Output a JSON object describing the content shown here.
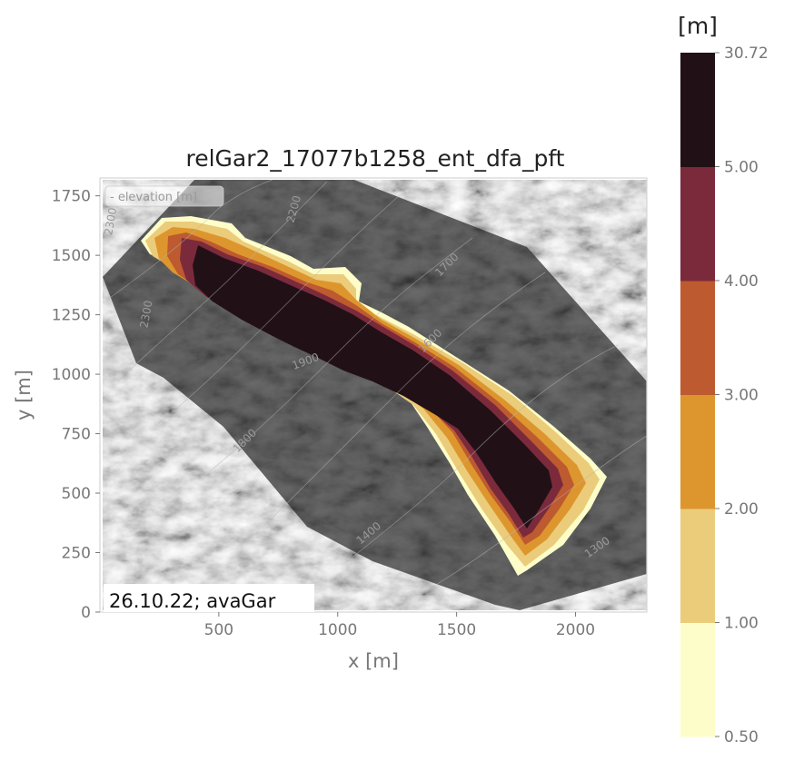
{
  "chart_data": {
    "type": "heatmap",
    "title": "relGar2_17077b1258_ent_dfa_pft",
    "xlabel": "x [m]",
    "ylabel": "y [m]",
    "xlim": [
      0,
      2300
    ],
    "ylim": [
      0,
      1825
    ],
    "x_ticks": [
      500,
      1000,
      1500,
      2000
    ],
    "y_ticks": [
      0,
      250,
      500,
      750,
      1000,
      1250,
      1500,
      1750
    ],
    "x_tick_labels": [
      "500",
      "1000",
      "1500",
      "2000"
    ],
    "y_tick_labels": [
      "0",
      "250",
      "500",
      "750",
      "1000",
      "1250",
      "1500",
      "1750"
    ],
    "legend_entry": "- elevation [m]",
    "annotation": "26.10.22; avaGar",
    "grid": false,
    "colorbar": {
      "unit": "[m]",
      "boundaries": [
        0.5,
        1.0,
        2.0,
        3.0,
        4.0,
        5.0,
        30.72
      ],
      "labels": [
        "0.50",
        "1.00",
        "2.00",
        "3.00",
        "4.00",
        "5.00",
        "30.72"
      ],
      "colors": [
        "#fdfdca",
        "#ebcc7a",
        "#dd962e",
        "#bd5a2f",
        "#7b2a3c",
        "#211117"
      ]
    },
    "contour_labels": [
      {
        "text": "2200",
        "x": 830,
        "y": 1690,
        "rot": -75
      },
      {
        "text": "2300",
        "x": 60,
        "y": 1640,
        "rot": -80
      },
      {
        "text": "2300",
        "x": 210,
        "y": 1250,
        "rot": -80
      },
      {
        "text": "1700",
        "x": 1470,
        "y": 1450,
        "rot": -45
      },
      {
        "text": "1900",
        "x": 870,
        "y": 1040,
        "rot": -20
      },
      {
        "text": "1600",
        "x": 1400,
        "y": 1130,
        "rot": -45
      },
      {
        "text": "1800",
        "x": 620,
        "y": 710,
        "rot": -45
      },
      {
        "text": "1400",
        "x": 1140,
        "y": 320,
        "rot": -40
      },
      {
        "text": "1300",
        "x": 2100,
        "y": 260,
        "rot": -35
      }
    ]
  }
}
